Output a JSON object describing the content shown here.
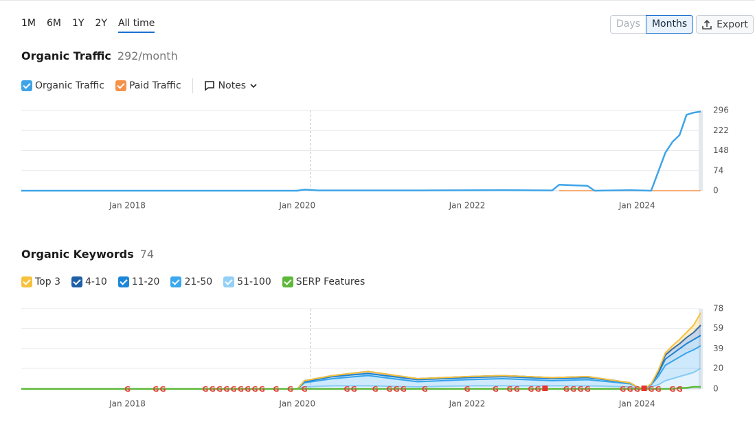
{
  "toolbar": {
    "ranges": [
      "1M",
      "6M",
      "1Y",
      "2Y",
      "All time"
    ],
    "granularity": [
      "Days",
      "Months"
    ],
    "export": "Export"
  },
  "chart_data": [
    {
      "type": "line",
      "title": "Organic Traffic",
      "subtitle": "292/month",
      "notes_button": "Notes",
      "x": [
        "2016-10",
        "2020-01",
        "2020-02",
        "2020-04",
        "2021-06",
        "2022-06",
        "2023-01",
        "2023-02",
        "2023-04",
        "2023-06",
        "2023-07",
        "2023-12",
        "2024-03",
        "2024-04",
        "2024-05",
        "2024-06",
        "2024-07",
        "2024-08",
        "2024-09",
        "2024-10"
      ],
      "series": [
        {
          "name": "Organic Traffic",
          "color": "#3ea4e8",
          "values": [
            0,
            0,
            4,
            1,
            1,
            2,
            1,
            22,
            20,
            18,
            0,
            2,
            0,
            70,
            140,
            180,
            205,
            280,
            288,
            292
          ]
        },
        {
          "name": "Paid Traffic",
          "color": "#f5924a",
          "values": [
            null,
            null,
            null,
            null,
            null,
            null,
            null,
            0,
            0,
            0,
            0,
            0,
            0,
            0,
            0,
            0,
            0,
            0,
            0,
            0
          ]
        }
      ],
      "xlim": [
        "2016-10",
        "2024-10"
      ],
      "xticks": [
        {
          "value": "2018-01",
          "label": "Jan 2018"
        },
        {
          "value": "2020-01",
          "label": "Jan 2020"
        },
        {
          "value": "2022-01",
          "label": "Jan 2022"
        },
        {
          "value": "2024-01",
          "label": "Jan 2024"
        }
      ],
      "ylim": [
        0,
        296
      ],
      "yticks": [
        0,
        74,
        148,
        222,
        296
      ],
      "grid": true
    },
    {
      "type": "area",
      "stacked": true,
      "title": "Organic Keywords",
      "total": 74,
      "x": [
        "2016-10",
        "2020-01",
        "2020-02",
        "2020-06",
        "2020-11",
        "2021-06",
        "2022-01",
        "2022-06",
        "2023-01",
        "2023-06",
        "2023-12",
        "2024-01",
        "2024-02",
        "2024-03",
        "2024-04",
        "2024-05",
        "2024-06",
        "2024-07",
        "2024-08",
        "2024-09",
        "2024-10"
      ],
      "series": [
        {
          "name": "Top 3",
          "color": "#f7c13c",
          "values": [
            0,
            0,
            0,
            0,
            0,
            0,
            0,
            0,
            0,
            0,
            0,
            0,
            0,
            0,
            1,
            2,
            3,
            4,
            5,
            7,
            12
          ]
        },
        {
          "name": "4-10",
          "color": "#1f5fa8",
          "values": [
            0,
            0,
            1,
            1,
            2,
            1,
            1,
            1,
            1,
            1,
            0,
            0,
            0,
            0,
            2,
            4,
            5,
            5,
            6,
            7,
            10
          ]
        },
        {
          "name": "11-20",
          "color": "#1c87d8",
          "values": [
            0,
            0,
            1,
            2,
            2,
            2,
            2,
            2,
            2,
            2,
            1,
            0,
            0,
            1,
            3,
            6,
            7,
            8,
            9,
            10,
            10
          ]
        },
        {
          "name": "21-50",
          "color": "#3aa8ef",
          "values": [
            0,
            0,
            4,
            7,
            10,
            5,
            6,
            7,
            5,
            6,
            3,
            1,
            0,
            2,
            8,
            15,
            17,
            19,
            21,
            22,
            22
          ]
        },
        {
          "name": "51-100",
          "color": "#93d0f6",
          "values": [
            0,
            0,
            2,
            3,
            3,
            2,
            3,
            3,
            3,
            3,
            2,
            1,
            0,
            2,
            4,
            8,
            10,
            12,
            14,
            16,
            20
          ]
        },
        {
          "name": "SERP Features",
          "type": "line",
          "color": "#5db839",
          "values": [
            0,
            0,
            0,
            0,
            0,
            0,
            0,
            0,
            0,
            0,
            0,
            0,
            0,
            0,
            0,
            0,
            0,
            1,
            1,
            2,
            2
          ]
        }
      ],
      "events": [
        {
          "x": "2018-01",
          "label": "G"
        },
        {
          "x": "2018-05",
          "label": "G"
        },
        {
          "x": "2018-06",
          "label": "G"
        },
        {
          "x": "2018-12",
          "label": "G"
        },
        {
          "x": "2019-01",
          "label": "G"
        },
        {
          "x": "2019-02",
          "label": "G"
        },
        {
          "x": "2019-03",
          "label": "G"
        },
        {
          "x": "2019-04",
          "label": "G"
        },
        {
          "x": "2019-05",
          "label": "G"
        },
        {
          "x": "2019-06",
          "label": "G"
        },
        {
          "x": "2019-07",
          "label": "G"
        },
        {
          "x": "2019-08",
          "label": "G"
        },
        {
          "x": "2019-10",
          "label": "G"
        },
        {
          "x": "2019-12",
          "label": "G"
        },
        {
          "x": "2020-02",
          "label": "G"
        },
        {
          "x": "2020-08",
          "label": "G"
        },
        {
          "x": "2020-09",
          "label": "G"
        },
        {
          "x": "2020-12",
          "label": "G"
        },
        {
          "x": "2021-02",
          "label": "G"
        },
        {
          "x": "2021-03",
          "label": "G"
        },
        {
          "x": "2021-04",
          "label": "G"
        },
        {
          "x": "2021-07",
          "label": "G"
        },
        {
          "x": "2022-01",
          "label": "G"
        },
        {
          "x": "2022-05",
          "label": "G"
        },
        {
          "x": "2022-07",
          "label": "G"
        },
        {
          "x": "2022-08",
          "label": "G"
        },
        {
          "x": "2022-10",
          "label": "G"
        },
        {
          "x": "2022-11",
          "label": "G"
        },
        {
          "x": "2023-03",
          "label": "G"
        },
        {
          "x": "2023-04",
          "label": "G"
        },
        {
          "x": "2023-05",
          "label": "G"
        },
        {
          "x": "2023-06",
          "label": "G"
        },
        {
          "x": "2023-11",
          "label": "G"
        },
        {
          "x": "2023-12",
          "label": "G"
        },
        {
          "x": "2024-01",
          "label": "G"
        },
        {
          "x": "2024-03",
          "label": "G"
        },
        {
          "x": "2024-04",
          "label": "G"
        },
        {
          "x": "2024-06",
          "label": "G"
        },
        {
          "x": "2024-07",
          "label": "G"
        }
      ],
      "notes": [
        "2022-12",
        "2024-02"
      ],
      "xlim": [
        "2016-10",
        "2024-10"
      ],
      "xticks": [
        {
          "value": "2018-01",
          "label": "Jan 2018"
        },
        {
          "value": "2020-01",
          "label": "Jan 2020"
        },
        {
          "value": "2022-01",
          "label": "Jan 2022"
        },
        {
          "value": "2024-01",
          "label": "Jan 2024"
        }
      ],
      "ylim": [
        0,
        78
      ],
      "yticks": [
        0,
        20,
        39,
        59,
        78
      ],
      "grid": true
    }
  ]
}
